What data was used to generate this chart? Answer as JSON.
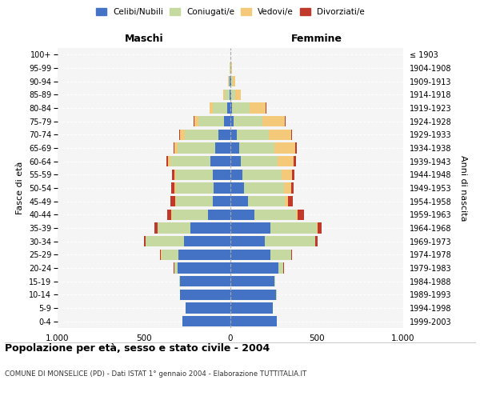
{
  "age_groups": [
    "0-4",
    "5-9",
    "10-14",
    "15-19",
    "20-24",
    "25-29",
    "30-34",
    "35-39",
    "40-44",
    "45-49",
    "50-54",
    "55-59",
    "60-64",
    "65-69",
    "70-74",
    "75-79",
    "80-84",
    "85-89",
    "90-94",
    "95-99",
    "100+"
  ],
  "birth_years": [
    "1999-2003",
    "1994-1998",
    "1989-1993",
    "1984-1988",
    "1979-1983",
    "1974-1978",
    "1969-1973",
    "1964-1968",
    "1959-1963",
    "1954-1958",
    "1949-1953",
    "1944-1948",
    "1939-1943",
    "1934-1938",
    "1929-1933",
    "1924-1928",
    "1919-1923",
    "1914-1918",
    "1909-1913",
    "1904-1908",
    "≤ 1903"
  ],
  "male": {
    "celibe": [
      280,
      260,
      290,
      290,
      305,
      300,
      270,
      230,
      130,
      100,
      95,
      100,
      115,
      90,
      70,
      35,
      20,
      6,
      3,
      1,
      0
    ],
    "coniugato": [
      0,
      1,
      2,
      5,
      20,
      100,
      220,
      190,
      210,
      215,
      220,
      215,
      230,
      215,
      195,
      150,
      80,
      25,
      8,
      2,
      0
    ],
    "vedovo": [
      0,
      0,
      0,
      0,
      0,
      1,
      2,
      2,
      3,
      5,
      8,
      10,
      15,
      20,
      25,
      25,
      20,
      10,
      4,
      1,
      0
    ],
    "divorziato": [
      0,
      0,
      0,
      1,
      2,
      5,
      10,
      20,
      25,
      25,
      20,
      15,
      10,
      5,
      5,
      3,
      2,
      0,
      0,
      0,
      0
    ]
  },
  "female": {
    "nubile": [
      270,
      245,
      265,
      255,
      280,
      230,
      200,
      230,
      140,
      100,
      80,
      70,
      60,
      50,
      35,
      20,
      10,
      5,
      5,
      2,
      0
    ],
    "coniugata": [
      0,
      1,
      2,
      5,
      25,
      120,
      290,
      270,
      240,
      215,
      230,
      225,
      215,
      205,
      185,
      165,
      100,
      25,
      8,
      2,
      0
    ],
    "vedova": [
      0,
      0,
      0,
      0,
      1,
      2,
      3,
      5,
      10,
      20,
      40,
      60,
      90,
      120,
      130,
      130,
      95,
      30,
      15,
      5,
      0
    ],
    "divorziata": [
      0,
      0,
      0,
      0,
      2,
      5,
      10,
      25,
      35,
      25,
      18,
      15,
      15,
      10,
      8,
      5,
      2,
      0,
      0,
      0,
      0
    ]
  },
  "colors": {
    "celibe": "#4472C4",
    "coniugato": "#c5d9a0",
    "vedovo": "#f5c97a",
    "divorziato": "#c0392b"
  },
  "xlim": 1000,
  "title": "Popolazione per età, sesso e stato civile - 2004",
  "subtitle": "COMUNE DI MONSELICE (PD) - Dati ISTAT 1° gennaio 2004 - Elaborazione TUTTITALIA.IT",
  "ylabel_left": "Fasce di età",
  "ylabel_right": "Anni di nascita",
  "xlabel_left": "Maschi",
  "xlabel_right": "Femmine",
  "legend_labels": [
    "Celibi/Nubili",
    "Coniugati/e",
    "Vedovi/e",
    "Divorziati/e"
  ]
}
